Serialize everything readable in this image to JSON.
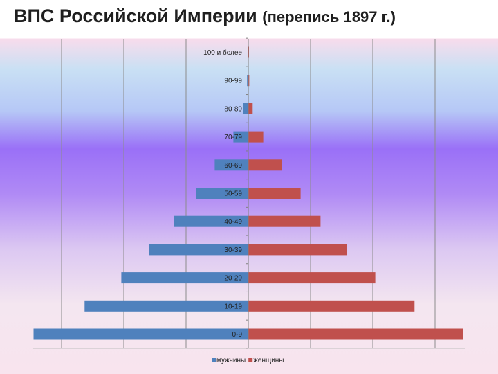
{
  "title": {
    "main": "ВПС Российской Империи",
    "sub": "(перепись 1897 г.)"
  },
  "chart_data": {
    "type": "bar",
    "orientation": "horizontal",
    "layout": "population-pyramid",
    "categories": [
      "0-9",
      "10-19",
      "20-29",
      "30-39",
      "40-49",
      "50-59",
      "60-69",
      "70-79",
      "80-89",
      "90-99",
      "100 и более"
    ],
    "series": [
      {
        "name": "мужчины",
        "color": "#4f81bd",
        "values": [
          34.5,
          26.3,
          20.4,
          16.0,
          12.0,
          8.4,
          5.4,
          2.4,
          0.8,
          0.2,
          0.05
        ]
      },
      {
        "name": "женщины",
        "color": "#c0504d",
        "values": [
          34.5,
          26.7,
          20.4,
          15.8,
          11.6,
          8.4,
          5.4,
          2.4,
          0.7,
          0.15,
          0.05
        ]
      }
    ],
    "xlim": [
      -35,
      35
    ],
    "grid": true,
    "legend_position": "bottom"
  }
}
